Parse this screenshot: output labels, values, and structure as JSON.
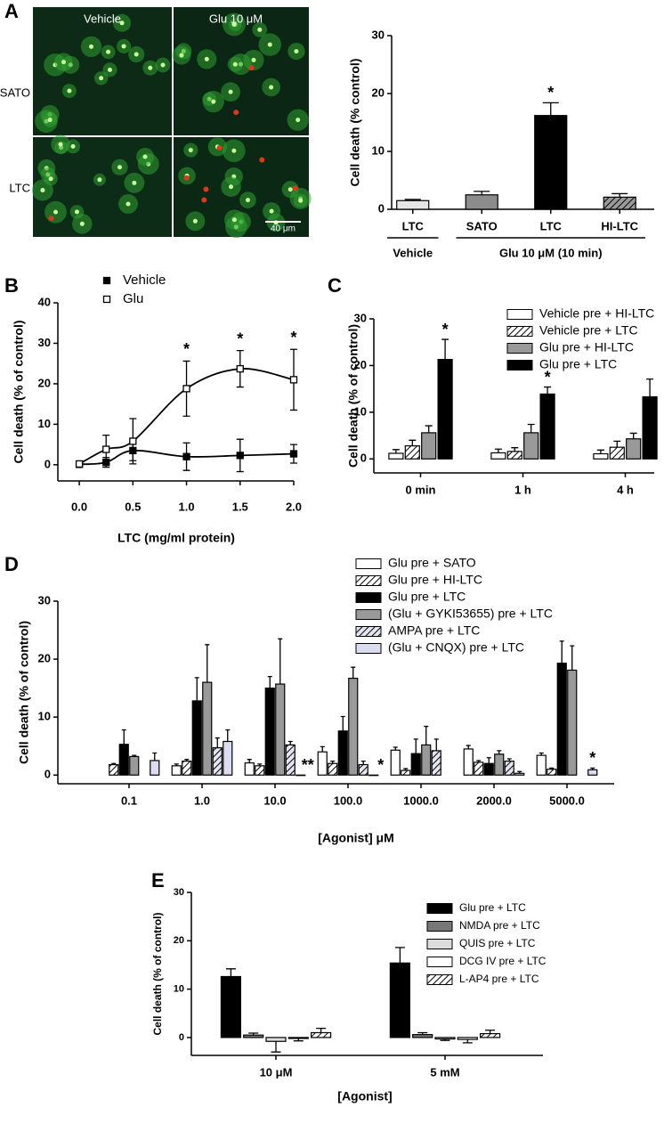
{
  "micrographs": {
    "columns": [
      "Vehicle",
      "Glu 10 μM"
    ],
    "rows": [
      "SATO",
      "LTC"
    ],
    "scale_bar": "40 μm"
  },
  "chart_data": [
    {
      "panel": "A",
      "type": "bar",
      "ylabel": "Cell death (% control)",
      "categories": [
        "LTC",
        "SATO",
        "LTC",
        "HI-LTC"
      ],
      "values": [
        1.5,
        2.5,
        16.2,
        2.1
      ],
      "errors": [
        0.2,
        0.6,
        2.2,
        0.6
      ],
      "colors": [
        "#e6e6e6",
        "#8c8c8c",
        "#000000",
        "#9a9a9a"
      ],
      "hatched": [
        false,
        false,
        false,
        true
      ],
      "group_labels": [
        "Vehicle",
        "Glu 10 μM (10 min)"
      ],
      "annotations": [
        {
          "text": "*",
          "category": 2
        }
      ],
      "ylim": [
        0,
        30
      ],
      "yticks": [
        0,
        10,
        20,
        30
      ]
    },
    {
      "panel": "B",
      "type": "line",
      "xlabel": "LTC (mg/ml protein)",
      "ylabel": "Cell death (% of control)",
      "x": [
        0,
        0.25,
        0.5,
        1.0,
        1.5,
        2.0
      ],
      "series": [
        {
          "name": "Vehicle",
          "color": "#000000",
          "marker": "filled-square",
          "values": [
            0.1,
            0.6,
            3.5,
            2.0,
            2.3,
            2.7
          ],
          "errors": [
            0.4,
            1.2,
            2.5,
            3.4,
            4.0,
            2.3
          ]
        },
        {
          "name": "Glu",
          "color": "#000000",
          "marker": "open-square",
          "values": [
            0.2,
            3.8,
            5.8,
            18.8,
            23.7,
            21.0
          ],
          "errors": [
            0.4,
            3.5,
            5.6,
            6.8,
            4.5,
            7.5
          ]
        }
      ],
      "annotations": [
        {
          "text": "*",
          "series": 1,
          "category": 3
        },
        {
          "text": "*",
          "series": 1,
          "category": 4
        },
        {
          "text": "*",
          "series": 1,
          "category": 5
        }
      ],
      "xlim": [
        -0.2,
        2.0
      ],
      "xticks": [
        {
          "value": 0,
          "label": "0.0"
        },
        {
          "value": 0.5,
          "label": "0.5"
        },
        {
          "value": 1,
          "label": "1.0"
        },
        {
          "value": 1.5,
          "label": "1.5"
        },
        {
          "value": 2,
          "label": "2.0"
        }
      ],
      "ylim": [
        -4,
        40
      ],
      "yticks": [
        0,
        10,
        20,
        30,
        40
      ]
    },
    {
      "panel": "C",
      "type": "bar",
      "ylabel": "Cell death (% of control)",
      "categories": [
        "0 min",
        "1 h",
        "4 h"
      ],
      "series": [
        {
          "name": "Vehicle pre + HI-LTC",
          "color": "#ffffff",
          "hatch": false,
          "values": [
            1.2,
            1.3,
            1.1
          ],
          "errors": [
            0.8,
            0.8,
            0.8
          ]
        },
        {
          "name": "Vehicle pre + LTC",
          "color": "#ffffff",
          "hatch": true,
          "values": [
            2.8,
            1.6,
            2.5
          ],
          "errors": [
            1.2,
            0.8,
            1.3
          ]
        },
        {
          "name": "Glu  pre + HI-LTC",
          "color": "#999999",
          "hatch": false,
          "values": [
            5.6,
            5.6,
            4.3
          ],
          "errors": [
            1.5,
            1.8,
            1.2
          ]
        },
        {
          "name": "Glu  pre + LTC",
          "color": "#000000",
          "hatch": false,
          "values": [
            21.3,
            13.9,
            13.3
          ],
          "errors": [
            4.3,
            1.5,
            3.8
          ]
        }
      ],
      "annotations": [
        {
          "text": "*",
          "series": 3,
          "category": 0
        },
        {
          "text": "*",
          "series": 3,
          "category": 1
        }
      ],
      "ylim": [
        -3,
        30
      ],
      "yticks": [
        0,
        10,
        20,
        30
      ]
    },
    {
      "panel": "D",
      "type": "bar",
      "xlabel": "[Agonist] μM",
      "ylabel": "Cell death (% of control)",
      "categories": [
        "0.1",
        "1.0",
        "10.0",
        "100.0",
        "1000.0",
        "2000.0",
        "5000.0"
      ],
      "series": [
        {
          "name": "Glu pre + SATO",
          "color": "#ffffff",
          "hatch": false,
          "values": [
            null,
            1.6,
            2.1,
            4.0,
            4.3,
            4.5,
            3.4
          ],
          "errors": [
            null,
            0.3,
            0.6,
            0.9,
            0.5,
            0.6,
            0.4
          ]
        },
        {
          "name": "Glu pre + HI-LTC",
          "color": "#ffffff",
          "hatch": true,
          "values": [
            1.8,
            2.4,
            1.6,
            2.0,
            0.8,
            2.2,
            1.0
          ],
          "errors": [
            0.2,
            0.3,
            0.3,
            0.4,
            0.3,
            0.3,
            0.2
          ]
        },
        {
          "name": "Glu pre + LTC",
          "color": "#000000",
          "hatch": false,
          "values": [
            5.3,
            12.8,
            15.0,
            7.6,
            3.7,
            2.0,
            19.3
          ],
          "errors": [
            2.5,
            4.0,
            2.0,
            2.5,
            2.5,
            1.0,
            3.8
          ]
        },
        {
          "name": "(Glu + GYKI53655) pre + LTC",
          "color": "#999999",
          "hatch": false,
          "values": [
            3.2,
            16.0,
            15.7,
            16.7,
            5.2,
            3.6,
            18.1
          ],
          "errors": [
            0.2,
            6.5,
            7.8,
            1.9,
            3.2,
            0.6,
            4.2
          ]
        },
        {
          "name": "AMPA pre + LTC",
          "color": "#e4e4f2",
          "hatch": true,
          "values": [
            null,
            4.7,
            5.2,
            1.8,
            4.2,
            2.4,
            null
          ],
          "errors": [
            null,
            1.7,
            0.6,
            0.6,
            2.0,
            0.4,
            null
          ]
        },
        {
          "name": "(Glu + CNQX) pre + LTC",
          "color": "#dcdcf0",
          "hatch": false,
          "values": [
            2.5,
            5.8,
            0,
            0,
            null,
            0.3,
            0.9
          ],
          "errors": [
            1.3,
            2.0,
            null,
            null,
            null,
            0.3,
            0.3
          ]
        }
      ],
      "annotations": [
        {
          "text": "**",
          "series": 5,
          "category": 2
        },
        {
          "text": "*",
          "series": 5,
          "category": 3
        },
        {
          "text": "*",
          "series": 5,
          "category": 6
        }
      ],
      "ylim": [
        -1.5,
        30
      ],
      "yticks": [
        0,
        10,
        20,
        30
      ]
    },
    {
      "panel": "E",
      "type": "bar",
      "xlabel": "[Agonist]",
      "ylabel": "Cell death (% of control)",
      "categories": [
        "10 μM",
        "5 mM"
      ],
      "series": [
        {
          "name": "Glu pre + LTC",
          "color": "#000000",
          "hatch": false,
          "values": [
            12.6,
            15.4
          ],
          "errors": [
            1.6,
            3.2
          ]
        },
        {
          "name": "NMDA pre + LTC",
          "color": "#777777",
          "hatch": false,
          "values": [
            0.5,
            0.6
          ],
          "errors": [
            0.4,
            0.4
          ]
        },
        {
          "name": "QUIS pre + LTC",
          "color": "#dddddd",
          "hatch": false,
          "values": [
            -0.8,
            -0.3
          ],
          "errors": [
            2.2,
            0.3
          ]
        },
        {
          "name": "DCG IV pre + LTC",
          "color": "#ffffff",
          "hatch": false,
          "values": [
            -0.2,
            -0.4
          ],
          "errors": [
            0.5,
            0.7
          ]
        },
        {
          "name": "L-AP4 pre + LTC",
          "color": "#ffffff",
          "hatch": true,
          "values": [
            1.0,
            0.8
          ],
          "errors": [
            0.9,
            0.7
          ]
        }
      ],
      "ylim": [
        -3.7,
        30
      ],
      "yticks": [
        0,
        10,
        20,
        30
      ]
    }
  ]
}
